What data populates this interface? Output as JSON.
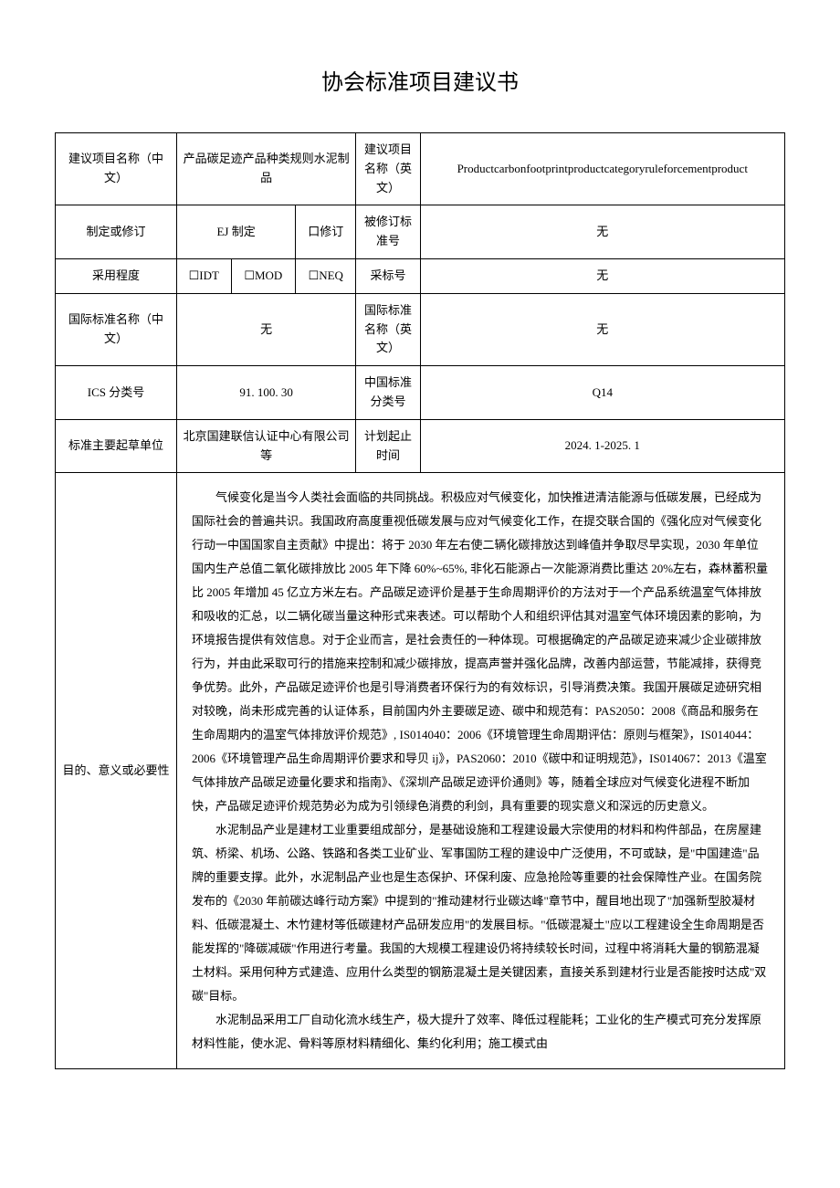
{
  "title": "协会标准项目建议书",
  "rows": {
    "r1": {
      "label_cn": "建议项目名称（中文）",
      "value_cn": "产品碳足迹产品种类规则水泥制品",
      "label_en": "建议项目名称（英文）",
      "value_en": "Productcarbonfootprintproductcategoryruleforcementproduct"
    },
    "r2": {
      "label": "制定或修订",
      "opt1": "EJ 制定",
      "opt2": "口修订",
      "label2": "被修订标准号",
      "value2": "无"
    },
    "r3": {
      "label": "采用程度",
      "opt1": "☐IDT",
      "opt2": "☐MOD",
      "opt3": "☐NEQ",
      "label2": "采标号",
      "value2": "无"
    },
    "r4": {
      "label_cn": "国际标准名称（中文）",
      "value_cn": "无",
      "label_en": "国际标准名称（英文）",
      "value_en": "无"
    },
    "r5": {
      "label1": "ICS 分类号",
      "value1": "91. 100. 30",
      "label2": "中国标准分类号",
      "value2": "Q14"
    },
    "r6": {
      "label1": "标准主要起草单位",
      "value1": "北京国建联信认证中心有限公司等",
      "label2": "计划起止时间",
      "value2": "2024. 1-2025. 1"
    },
    "r7": {
      "label": "目的、意义或必要性",
      "p1": "气候变化是当今人类社会面临的共同挑战。积极应对气候变化，加快推进清洁能源与低碳发展，已经成为国际社会的普遍共识。我国政府高度重视低碳发展与应对气候变化工作，在提交联合国的《强化应对气候变化行动一中国国家自主贡献》中提出：将于 2030 年左右使二辆化碳排放达到峰值并争取尽早实现，2030 年单位国内生产总值二氧化碳排放比 2005 年下降 60%~65%, 非化石能源占一次能源消费比重达 20%左右，森林蓄积量比 2005 年增加 45 亿立方米左右。产品碳足迹评价是基于生命周期评价的方法对于一个产品系统温室气体排放和吸收的汇总，以二辆化碳当量这种形式来表述。可以帮助个人和组织评估其对温室气体环境因素的影响，为环境报告提供有效信息。对于企业而言，是社会责任的一种体现。可根据确定的产品碳足迹来减少企业碳排放行为，并由此采取可行的措施来控制和减少碳排放，提高声誉并强化品牌，改善内部运营，节能减排，获得竞争优势。此外，产品碳足迹评价也是引导消费者环保行为的有效标识，引导消费决策。我国开展碳足迹研究相对较晚，尚未形成完善的认证体系，目前国内外主要碳足迹、碳中和规范有：PAS2050：2008《商品和服务在生命周期内的温室气体排放评价规范》, IS014040：2006《环境管理生命周期评估：原则与框架》，IS014044：2006《环境管理产品生命周期评价要求和导贝 ij》，PAS2060：2010《碳中和证明规范》，IS014067：2013《温室气体排放产品碳足迹量化要求和指南》、《深圳产品碳足迹评价通则》等，随着全球应对气候变化进程不断加快，产品碳足迹评价规范势必为成为引领绿色消费的利剑，具有重要的现实意义和深远的历史意义。",
      "p2": "水泥制品产业是建材工业重要组成部分，是基础设施和工程建设最大宗使用的材料和构件部品，在房屋建筑、桥梁、机场、公路、铁路和各类工业矿业、军事国防工程的建设中广泛使用，不可或缺，是\"中国建造\"品牌的重要支撑。此外，水泥制品产业也是生态保护、环保利废、应急抢险等重要的社会保障性产业。在国务院发布的《2030 年前碳达峰行动方案》中提到的\"推动建材行业碳达峰\"章节中，醒目地出现了\"加强新型胶凝材料、低碳混凝土、木竹建材等低碳建材产品研发应用\"的发展目标。\"低碳混凝土\"应以工程建设全生命周期是否能发挥的\"降碳减碳\"作用进行考量。我国的大规模工程建设仍将持续较长时间，过程中将消耗大量的钢筋混凝土材料。采用何种方式建造、应用什么类型的钢筋混凝土是关键因素，直接关系到建材行业是否能按时达成\"双碳\"目标。",
      "p3": "水泥制品采用工厂自动化流水线生产，极大提升了效率、降低过程能耗；工业化的生产模式可充分发挥原材料性能，使水泥、骨料等原材料精细化、集约化利用；施工模式由"
    }
  }
}
